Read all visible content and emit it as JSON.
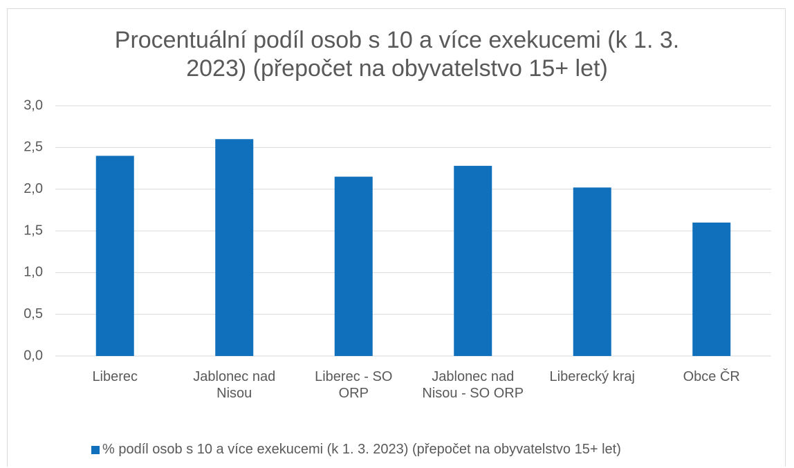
{
  "chart_data": {
    "type": "bar",
    "title": "Procentuální podíl osob s 10 a více exekucemi (k 1. 3. 2023) (přepočet na obyvatelstvo 15+ let)",
    "categories": [
      "Liberec",
      "Jablonec nad Nisou",
      "Liberec - SO ORP",
      "Jablonec nad Nisou - SO ORP",
      "Liberecký kraj",
      "Obce ČR"
    ],
    "series": [
      {
        "name": "% podíl osob s 10 a více exekucemi (k 1. 3. 2023) (přepočet na obyvatelstvo 15+ let)",
        "color": "#1170bb",
        "values": [
          2.4,
          2.6,
          2.15,
          2.28,
          2.02,
          1.6
        ]
      }
    ],
    "ylim": [
      0,
      3
    ],
    "yticks": [
      {
        "value": 0,
        "label": "0,0"
      },
      {
        "value": 0.5,
        "label": "0,5"
      },
      {
        "value": 1,
        "label": "1,0"
      },
      {
        "value": 1.5,
        "label": "1,5"
      },
      {
        "value": 2,
        "label": "2,0"
      },
      {
        "value": 2.5,
        "label": "2,5"
      },
      {
        "value": 3,
        "label": "3,0"
      }
    ],
    "grid": true,
    "legend": "bottom"
  }
}
